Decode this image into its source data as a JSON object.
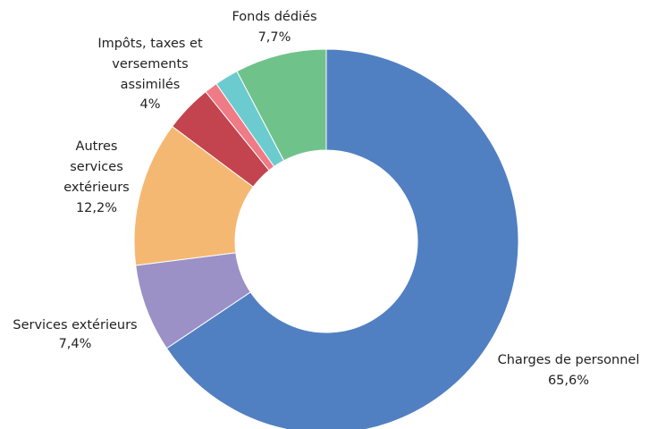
{
  "chart_data": {
    "type": "donut",
    "categories": [
      "Charges de personnel",
      "Services extérieurs",
      "Autres services extérieurs",
      "Impôts, taxes et versements assimilés",
      null,
      null,
      "Fonds dédiés"
    ],
    "values": [
      65.6,
      7.4,
      12.2,
      4,
      1.1,
      2.0,
      7.7
    ],
    "value_labels": [
      "65,6%",
      "7,4%",
      "12,2%",
      "4%",
      null,
      null,
      "7,7%"
    ],
    "colors": [
      "#5180c2",
      "#9b91c7",
      "#f5b872",
      "#c3444f",
      "#ee7b85",
      "#6ccbcf",
      "#70c28b"
    ]
  }
}
